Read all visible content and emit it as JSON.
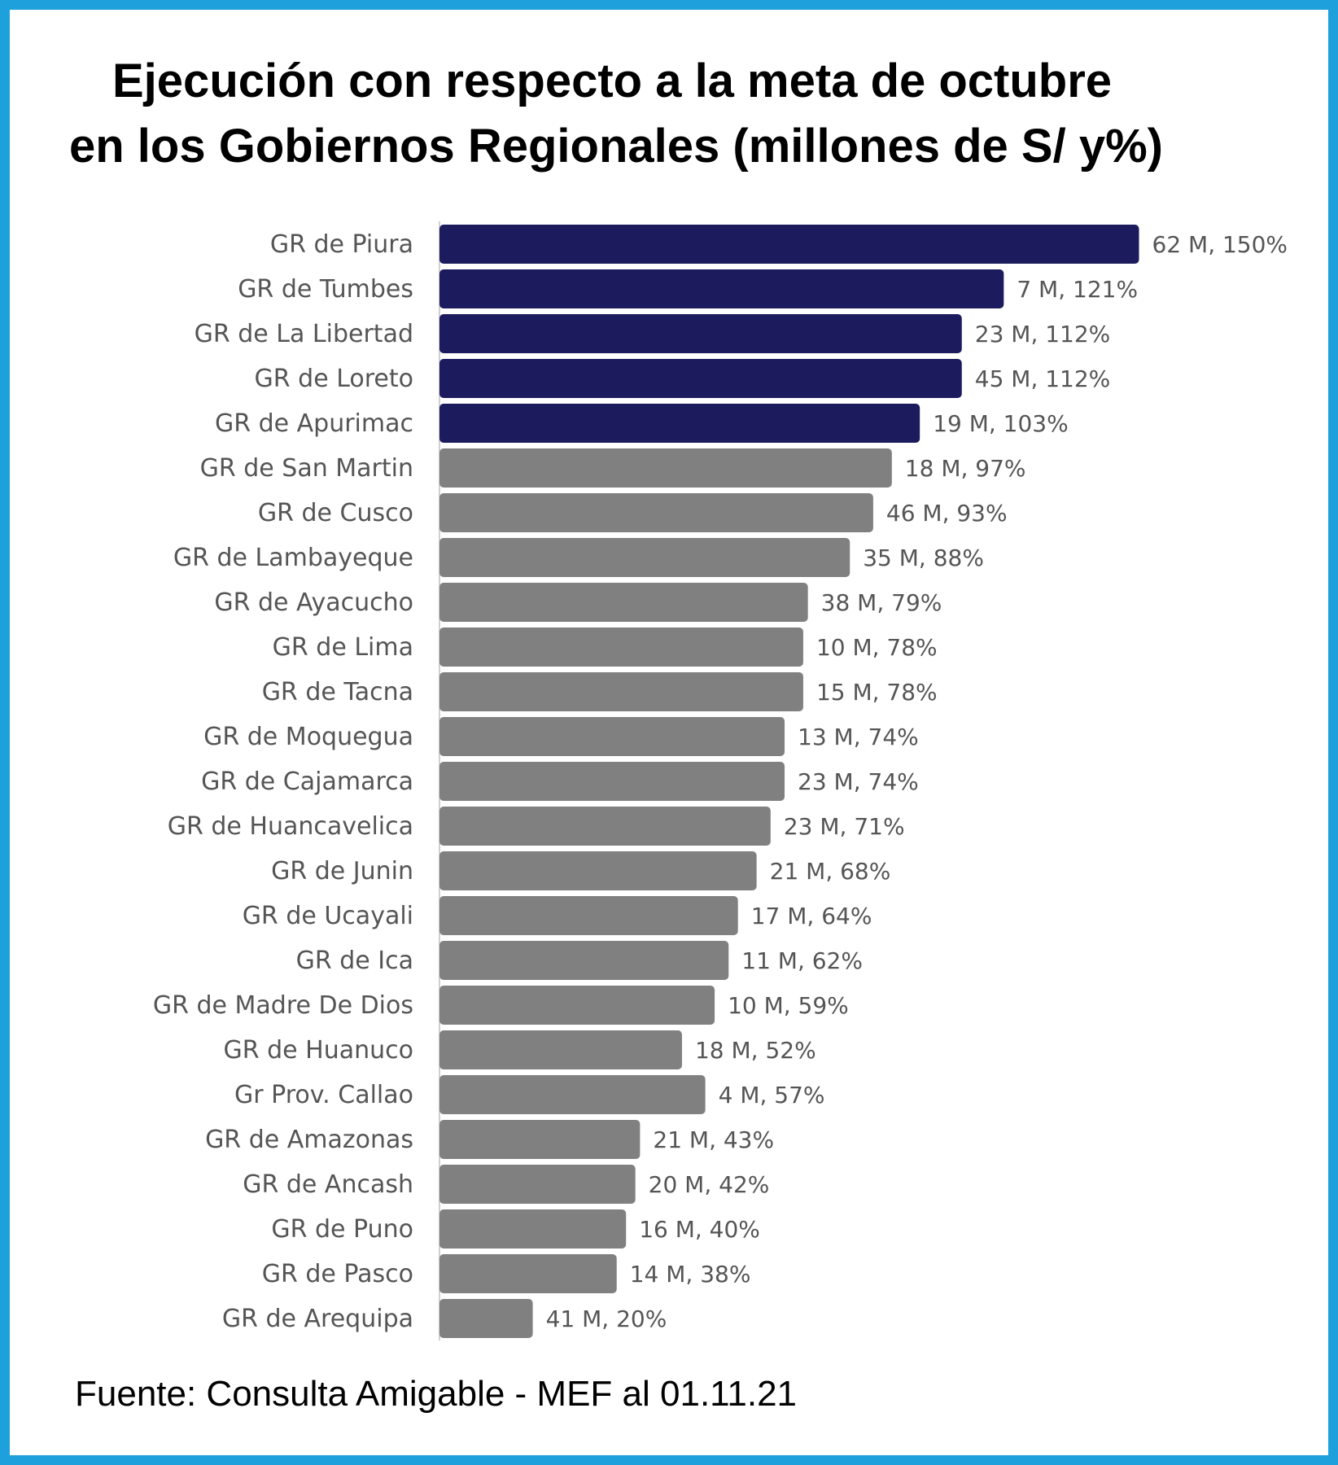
{
  "title_line1": "Ejecución con respecto a la meta de octubre",
  "title_line2": "en los Gobiernos Regionales (millones de S/ y%)",
  "source": "Fuente: Consulta Amigable - MEF al 01.11.21",
  "colors": {
    "frame": "#1ea0dc",
    "above_goal": "#1b1b5e",
    "below_goal": "#808080"
  },
  "chart_data": {
    "type": "bar",
    "orientation": "horizontal",
    "title": "Ejecución con respecto a la meta de octubre en los Gobiernos Regionales (millones de S/ y%)",
    "xlabel": "",
    "ylabel": "",
    "grid": false,
    "categories": [
      "GR de Piura",
      "GR de Tumbes",
      "GR de La Libertad",
      "GR de Loreto",
      "GR de Apurimac",
      "GR de San Martin",
      "GR de Cusco",
      "GR de Lambayeque",
      "GR de Ayacucho",
      "GR de Lima",
      "GR de Tacna",
      "GR de Moquegua",
      "GR de Cajamarca",
      "GR de Huancavelica",
      "GR de Junin",
      "GR de Ucayali",
      "GR de Ica",
      "GR de Madre De Dios",
      "GR de Huanuco",
      "Gr Prov. Callao",
      "GR de Amazonas",
      "GR de Ancash",
      "GR de Puno",
      "GR de Pasco",
      "GR de Arequipa"
    ],
    "values": [
      150,
      121,
      112,
      112,
      103,
      97,
      93,
      88,
      79,
      78,
      78,
      74,
      74,
      71,
      68,
      64,
      62,
      59,
      52,
      57,
      43,
      42,
      40,
      38,
      20
    ],
    "amounts_millions": [
      62,
      7,
      23,
      45,
      19,
      18,
      46,
      35,
      38,
      10,
      15,
      13,
      23,
      23,
      21,
      17,
      11,
      10,
      18,
      4,
      21,
      20,
      16,
      14,
      41
    ],
    "data_labels": [
      "62 M, 150%",
      "7 M, 121%",
      "23 M, 112%",
      "45 M, 112%",
      "19 M, 103%",
      "18 M, 97%",
      "46 M, 93%",
      "35 M, 88%",
      "38 M, 79%",
      "10 M, 78%",
      "15 M, 78%",
      "13 M, 74%",
      "23 M, 74%",
      "23 M, 71%",
      "21 M, 68%",
      "17 M, 64%",
      "11 M, 62%",
      "10 M, 59%",
      "18 M, 52%",
      "4 M, 57%",
      "21 M, 43%",
      "20 M, 42%",
      "16 M, 40%",
      "14 M, 38%",
      "41 M, 20%"
    ],
    "highlight_threshold_percent": 100
  }
}
